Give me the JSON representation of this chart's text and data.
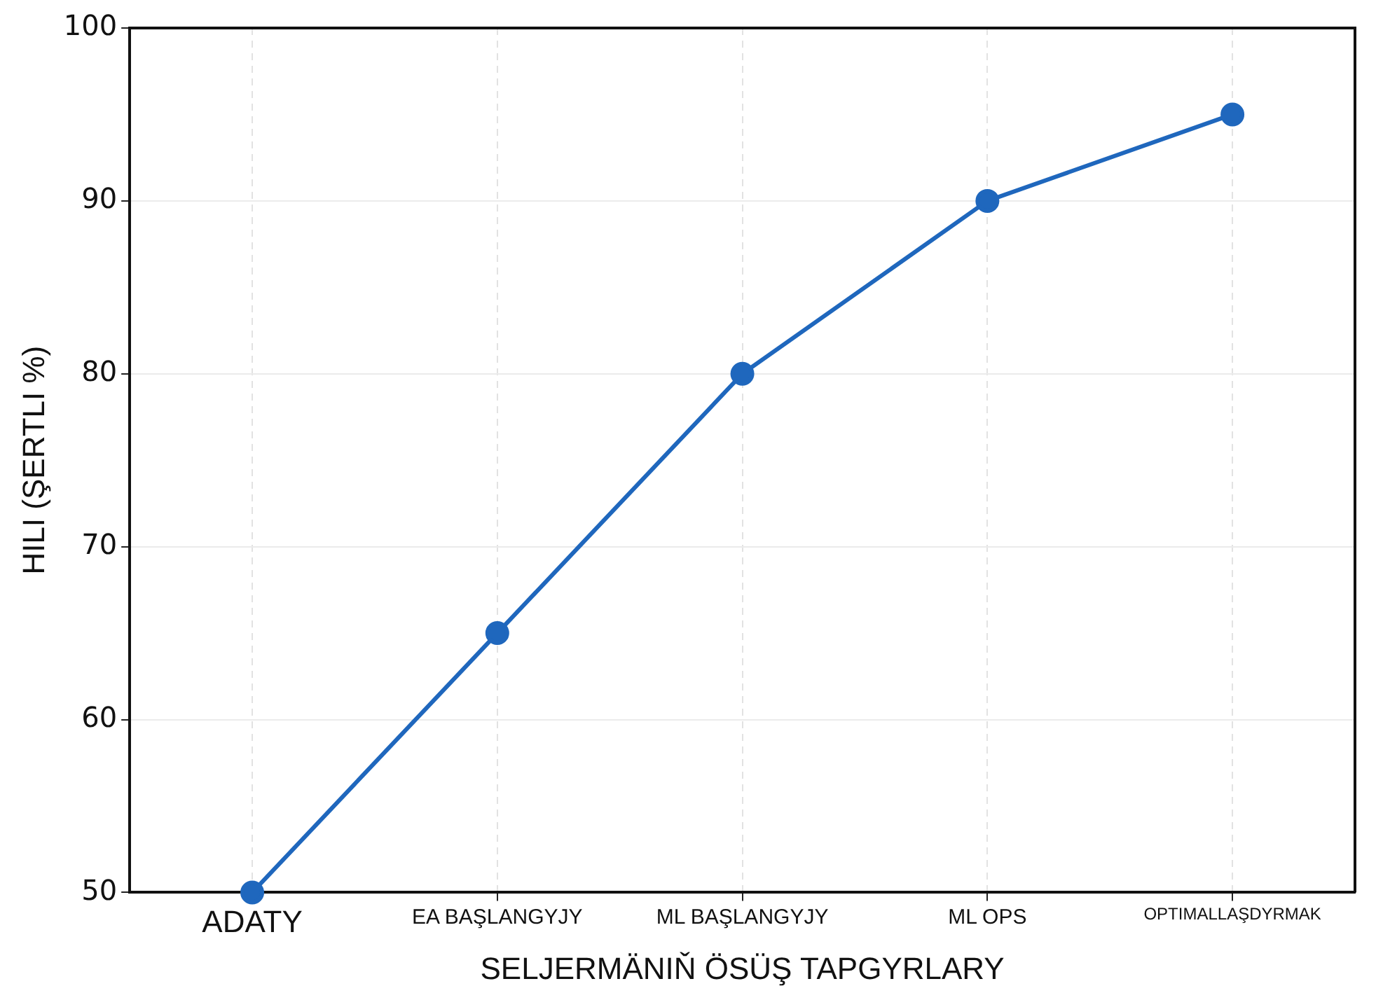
{
  "chart_data": {
    "type": "line",
    "xlabel": "SELJERMÄNIŇ ÖSÜŞ TAPGYRLARY",
    "ylabel": "HILI (ŞERTLI %)",
    "categories": [
      "ADATY",
      "EA BAŞLANGYJY",
      "ML BAŞLANGYJY",
      "ML OPS",
      "OPTIMALLAŞDYRMAK"
    ],
    "series": [
      {
        "color": "#1f67bd",
        "values": [
          50,
          65,
          80,
          90,
          95
        ]
      }
    ],
    "ylim": [
      50,
      100
    ],
    "yticks": [
      50,
      60,
      70,
      80,
      90,
      100
    ],
    "grid": true,
    "marker": "circle",
    "line_style": "solid",
    "legend": false
  }
}
